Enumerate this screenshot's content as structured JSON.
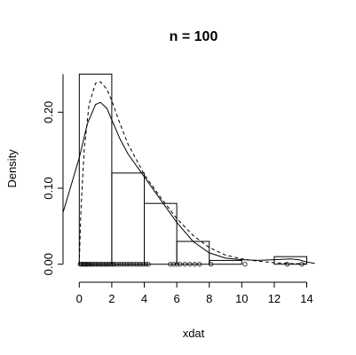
{
  "chart_data": {
    "type": "histogram",
    "title": "n = 100",
    "xlabel": "xdat",
    "ylabel": "Density",
    "xlim": [
      -1,
      14.9
    ],
    "ylim": [
      -0.012,
      0.26
    ],
    "x_ticks": [
      0,
      2,
      4,
      6,
      8,
      10,
      12,
      14
    ],
    "x_tick_labels": [
      "0",
      "2",
      "4",
      "6",
      "8",
      "10",
      "12",
      "14"
    ],
    "y_ticks": [
      0.0,
      0.1,
      0.2
    ],
    "y_tick_labels": [
      "0.00",
      "0.10",
      "0.20"
    ],
    "bins": [
      {
        "x0": 0,
        "x1": 2,
        "density": 0.25
      },
      {
        "x0": 2,
        "x1": 4,
        "density": 0.12
      },
      {
        "x0": 4,
        "x1": 6,
        "density": 0.08
      },
      {
        "x0": 6,
        "x1": 8,
        "density": 0.03
      },
      {
        "x0": 8,
        "x1": 10,
        "density": 0.005
      },
      {
        "x0": 10,
        "x1": 12,
        "density": 0.0
      },
      {
        "x0": 12,
        "x1": 14,
        "density": 0.01
      }
    ],
    "rug_points": [
      0.05,
      0.12,
      0.2,
      0.28,
      0.35,
      0.42,
      0.5,
      0.58,
      0.66,
      0.75,
      0.85,
      0.95,
      1.05,
      1.15,
      1.25,
      1.35,
      1.45,
      1.55,
      1.65,
      1.75,
      1.85,
      1.95,
      2.05,
      2.15,
      2.3,
      2.45,
      2.6,
      2.75,
      2.9,
      3.05,
      3.2,
      3.35,
      3.5,
      3.65,
      3.8,
      3.95,
      4.1,
      4.25,
      5.6,
      5.8,
      6.0,
      6.2,
      6.5,
      6.8,
      7.1,
      7.4,
      8.1,
      10.2,
      12.8,
      13.7
    ],
    "series": [
      {
        "line_style": "solid",
        "points": [
          [
            -1,
            0.068
          ],
          [
            0,
            0.14
          ],
          [
            0.5,
            0.185
          ],
          [
            1.0,
            0.21
          ],
          [
            1.3,
            0.213
          ],
          [
            1.7,
            0.205
          ],
          [
            2.0,
            0.19
          ],
          [
            2.5,
            0.165
          ],
          [
            3.0,
            0.145
          ],
          [
            3.5,
            0.13
          ],
          [
            4.0,
            0.115
          ],
          [
            5.0,
            0.085
          ],
          [
            6.0,
            0.055
          ],
          [
            7.0,
            0.03
          ],
          [
            8.0,
            0.015
          ],
          [
            9.0,
            0.008
          ],
          [
            10.0,
            0.006
          ],
          [
            11.0,
            0.005
          ],
          [
            12.0,
            0.006
          ],
          [
            13.0,
            0.007
          ],
          [
            13.5,
            0.006
          ],
          [
            14.0,
            0.003
          ],
          [
            14.5,
            0.001
          ]
        ]
      },
      {
        "line_style": "dashed",
        "points": [
          [
            0.0,
            0.0
          ],
          [
            0.1,
            0.07
          ],
          [
            0.3,
            0.15
          ],
          [
            0.6,
            0.21
          ],
          [
            1.0,
            0.238
          ],
          [
            1.3,
            0.24
          ],
          [
            1.7,
            0.23
          ],
          [
            2.0,
            0.215
          ],
          [
            2.5,
            0.185
          ],
          [
            3.0,
            0.158
          ],
          [
            3.5,
            0.138
          ],
          [
            4.0,
            0.118
          ],
          [
            5.0,
            0.088
          ],
          [
            6.0,
            0.06
          ],
          [
            7.0,
            0.038
          ],
          [
            8.0,
            0.022
          ],
          [
            9.0,
            0.012
          ],
          [
            10.0,
            0.007
          ],
          [
            11.0,
            0.004
          ],
          [
            12.0,
            0.002
          ],
          [
            13.0,
            0.001
          ],
          [
            14.0,
            0.0005
          ]
        ]
      }
    ]
  }
}
